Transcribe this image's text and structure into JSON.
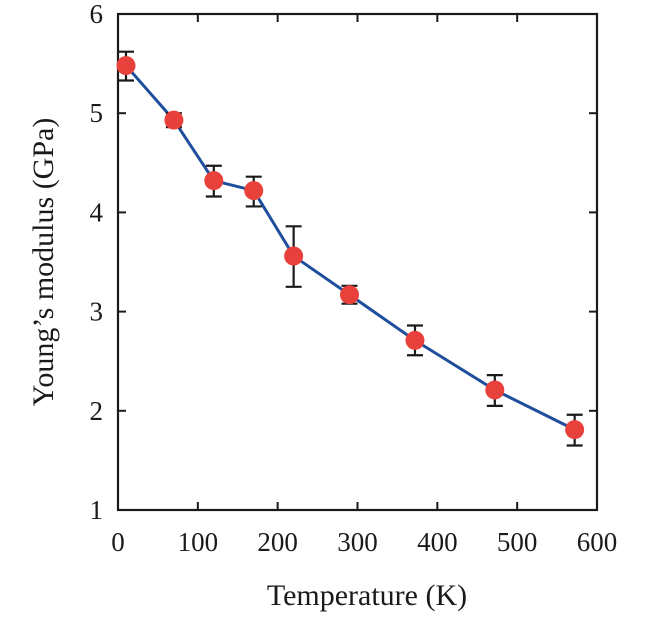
{
  "chart_data": {
    "type": "line",
    "xlabel": "Temperature (K)",
    "ylabel": "Young’s modulus (GPa)",
    "xlim": [
      0,
      600
    ],
    "ylim": [
      1,
      6
    ],
    "xticks": [
      "0",
      "100",
      "200",
      "300",
      "400",
      "500",
      "600"
    ],
    "yticks": [
      "1",
      "2",
      "3",
      "4",
      "5",
      "6"
    ],
    "grid": false,
    "colors": {
      "line": "#1f4e9c",
      "marker": "#e8403a",
      "errorbar": "#1a1a1a"
    },
    "series": [
      {
        "x": [
          10,
          70,
          120,
          170,
          220,
          290,
          372,
          472,
          572
        ],
        "y": [
          5.48,
          4.93,
          4.32,
          4.22,
          3.56,
          3.17,
          2.71,
          2.21,
          1.81
        ],
        "yerr_low": [
          0.15,
          0.07,
          0.16,
          0.16,
          0.31,
          0.09,
          0.15,
          0.16,
          0.16
        ],
        "yerr_high": [
          0.14,
          0.07,
          0.15,
          0.14,
          0.3,
          0.09,
          0.15,
          0.15,
          0.15
        ]
      }
    ]
  }
}
